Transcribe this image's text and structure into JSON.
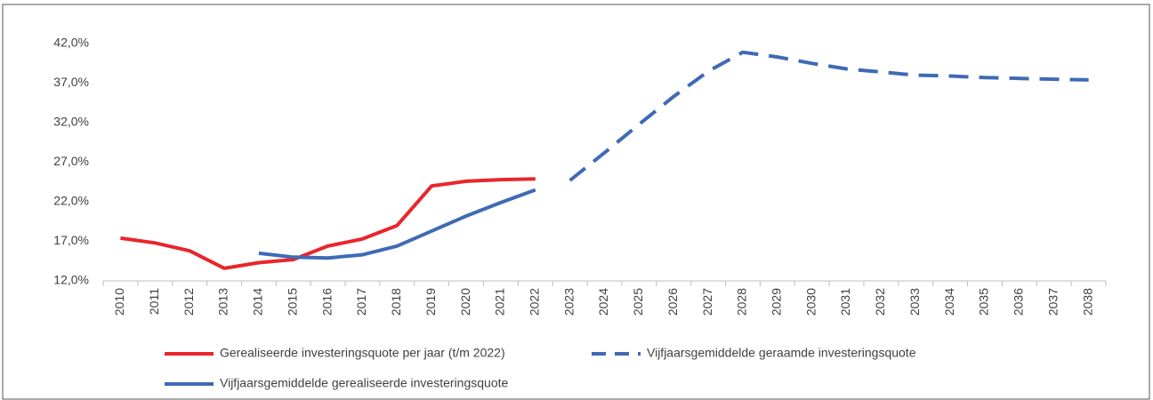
{
  "chart_data": {
    "type": "line",
    "categories": [
      "2010",
      "2011",
      "2012",
      "2013",
      "2014",
      "2015",
      "2016",
      "2017",
      "2018",
      "2019",
      "2020",
      "2021",
      "2022",
      "2023",
      "2024",
      "2025",
      "2026",
      "2027",
      "2028",
      "2029",
      "2030",
      "2031",
      "2032",
      "2033",
      "2034",
      "2035",
      "2036",
      "2037",
      "2038"
    ],
    "series": [
      {
        "name": "Gerealiseerde investeringsquote per jaar (t/m 2022)",
        "color": "#e8262b",
        "line_style": "solid",
        "values": [
          17.4,
          16.8,
          15.8,
          13.6,
          14.3,
          14.7,
          16.4,
          17.3,
          19.0,
          24.0,
          24.6,
          24.8,
          24.9,
          null,
          null,
          null,
          null,
          null,
          null,
          null,
          null,
          null,
          null,
          null,
          null,
          null,
          null,
          null,
          null
        ]
      },
      {
        "name": "Vijfjaarsgemiddelde geraamde investeringsquote",
        "color": "#3f6ab5",
        "line_style": "dashed",
        "values": [
          null,
          null,
          null,
          null,
          null,
          null,
          null,
          null,
          null,
          null,
          null,
          null,
          null,
          24.7,
          28.2,
          31.8,
          35.3,
          38.5,
          40.9,
          40.3,
          39.5,
          38.8,
          38.4,
          38.0,
          37.9,
          37.7,
          37.6,
          37.5,
          37.4
        ]
      },
      {
        "name": "Vijfjaarsgemiddelde gerealiseerde investeringsquote",
        "color": "#3f6ab5",
        "line_style": "solid",
        "values": [
          null,
          null,
          null,
          null,
          15.5,
          15.0,
          14.9,
          15.3,
          16.4,
          18.3,
          20.2,
          21.9,
          23.5,
          null,
          null,
          null,
          null,
          null,
          null,
          null,
          null,
          null,
          null,
          null,
          null,
          null,
          null,
          null,
          null
        ]
      }
    ],
    "ylim": [
      12,
      42
    ],
    "yticks": [
      {
        "value": 12,
        "label": "12,0%"
      },
      {
        "value": 17,
        "label": "17,0%"
      },
      {
        "value": 22,
        "label": "22,0%"
      },
      {
        "value": 27,
        "label": "27,0%"
      },
      {
        "value": 32,
        "label": "32,0%"
      },
      {
        "value": 37,
        "label": "37,0%"
      },
      {
        "value": 42,
        "label": "42,0%"
      }
    ],
    "grid": false
  }
}
